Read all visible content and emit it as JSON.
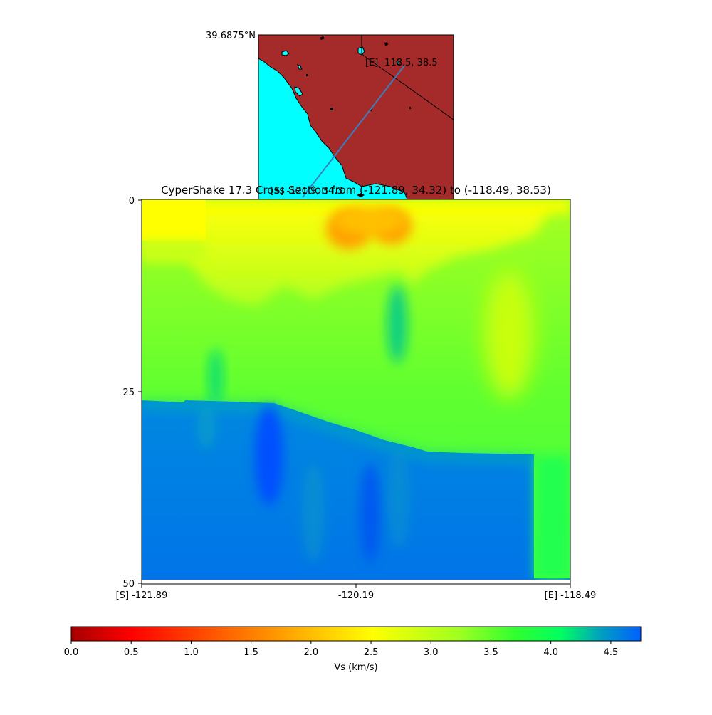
{
  "chart_data": [
    {
      "type": "map",
      "top_label": "39.6875°N",
      "land_color": "#a52a2a",
      "water_color": "#00ffff",
      "line_color": "#3a7fc0",
      "start_marker": "[S] -121.9, 34.3",
      "end_marker": "[E] -118.5, 38.5"
    },
    {
      "type": "heatmap",
      "title": "CyperShake 17.3 Cross Section from (-121.89, 34.32) to (-118.49, 38.53)",
      "y_ticks": [
        "0",
        "25",
        "50"
      ],
      "y_range": [
        0,
        50
      ],
      "x_ticks": [
        "[S] -121.89",
        "-120.19",
        "[E] -118.49"
      ],
      "x_range": [
        -121.89,
        -118.49
      ],
      "colorbar": {
        "label": "Vs (km/s)",
        "ticks": [
          "0.0",
          "0.5",
          "1.0",
          "1.5",
          "2.0",
          "2.5",
          "3.0",
          "3.5",
          "4.0",
          "4.5"
        ],
        "range": [
          0,
          4.75
        ],
        "colors": [
          "#a50000",
          "#ff0000",
          "#ff8000",
          "#ffff00",
          "#80ff00",
          "#00ff60",
          "#0060ff"
        ]
      }
    }
  ]
}
